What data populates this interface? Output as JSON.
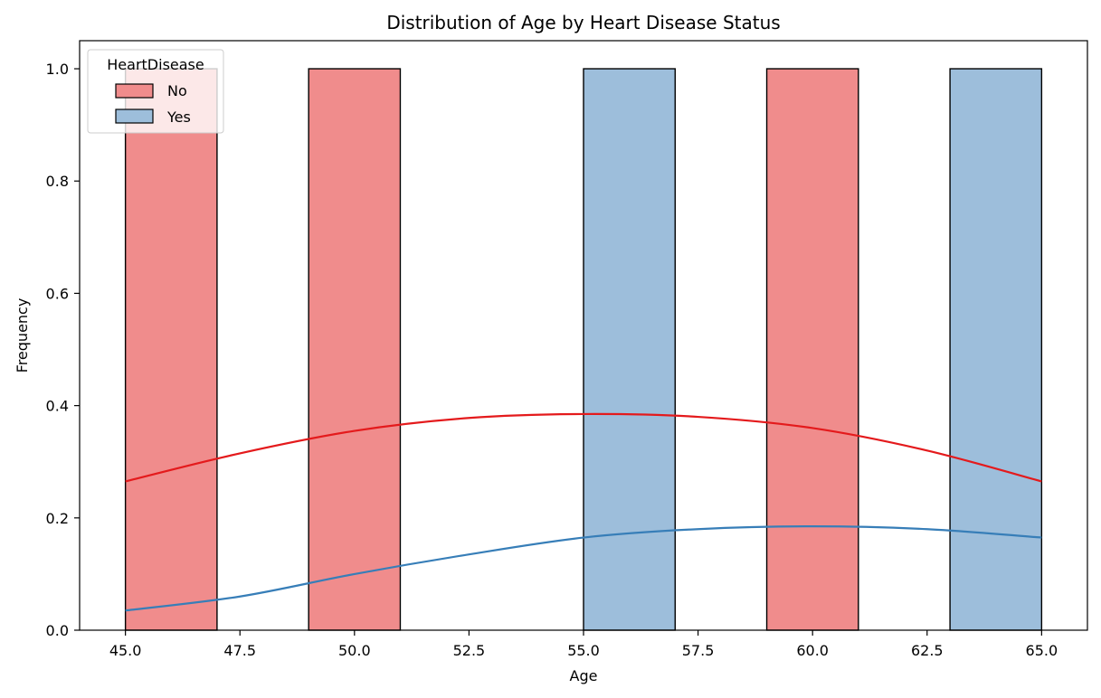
{
  "chart_data": {
    "type": "bar",
    "title": "Distribution of Age by Heart Disease Status",
    "xlabel": "Age",
    "ylabel": "Frequency",
    "xlim": [
      44.0,
      66.0
    ],
    "ylim": [
      0,
      1.05
    ],
    "xticks": [
      "45.0",
      "47.5",
      "50.0",
      "52.5",
      "55.0",
      "57.5",
      "60.0",
      "62.5",
      "65.0"
    ],
    "yticks": [
      "0.0",
      "0.2",
      "0.4",
      "0.6",
      "0.8",
      "1.0"
    ],
    "grid": false,
    "legend": {
      "title": "HeartDisease",
      "placement": "top-left",
      "entries": [
        "No",
        "Yes"
      ]
    },
    "bins": [
      {
        "x0": 45.0,
        "x1": 47.0,
        "series": "No",
        "value": 1
      },
      {
        "x0": 49.0,
        "x1": 51.0,
        "series": "No",
        "value": 1
      },
      {
        "x0": 55.0,
        "x1": 57.0,
        "series": "Yes",
        "value": 1
      },
      {
        "x0": 59.0,
        "x1": 61.0,
        "series": "No",
        "value": 1
      },
      {
        "x0": 63.0,
        "x1": 65.0,
        "series": "Yes",
        "value": 1
      }
    ],
    "series": [
      {
        "name": "No",
        "bar_color": "#f08c8c",
        "line_color": "#e41a1c",
        "kde": [
          [
            45.0,
            0.265
          ],
          [
            47.5,
            0.315
          ],
          [
            50.0,
            0.355
          ],
          [
            52.5,
            0.378
          ],
          [
            55.0,
            0.385
          ],
          [
            57.5,
            0.38
          ],
          [
            60.0,
            0.36
          ],
          [
            62.5,
            0.32
          ],
          [
            65.0,
            0.265
          ]
        ]
      },
      {
        "name": "Yes",
        "bar_color": "#9dbedb",
        "line_color": "#377eb8",
        "kde": [
          [
            45.0,
            0.035
          ],
          [
            47.5,
            0.06
          ],
          [
            50.0,
            0.1
          ],
          [
            52.5,
            0.135
          ],
          [
            55.0,
            0.165
          ],
          [
            57.5,
            0.18
          ],
          [
            60.0,
            0.185
          ],
          [
            62.5,
            0.18
          ],
          [
            65.0,
            0.165
          ]
        ]
      }
    ]
  }
}
